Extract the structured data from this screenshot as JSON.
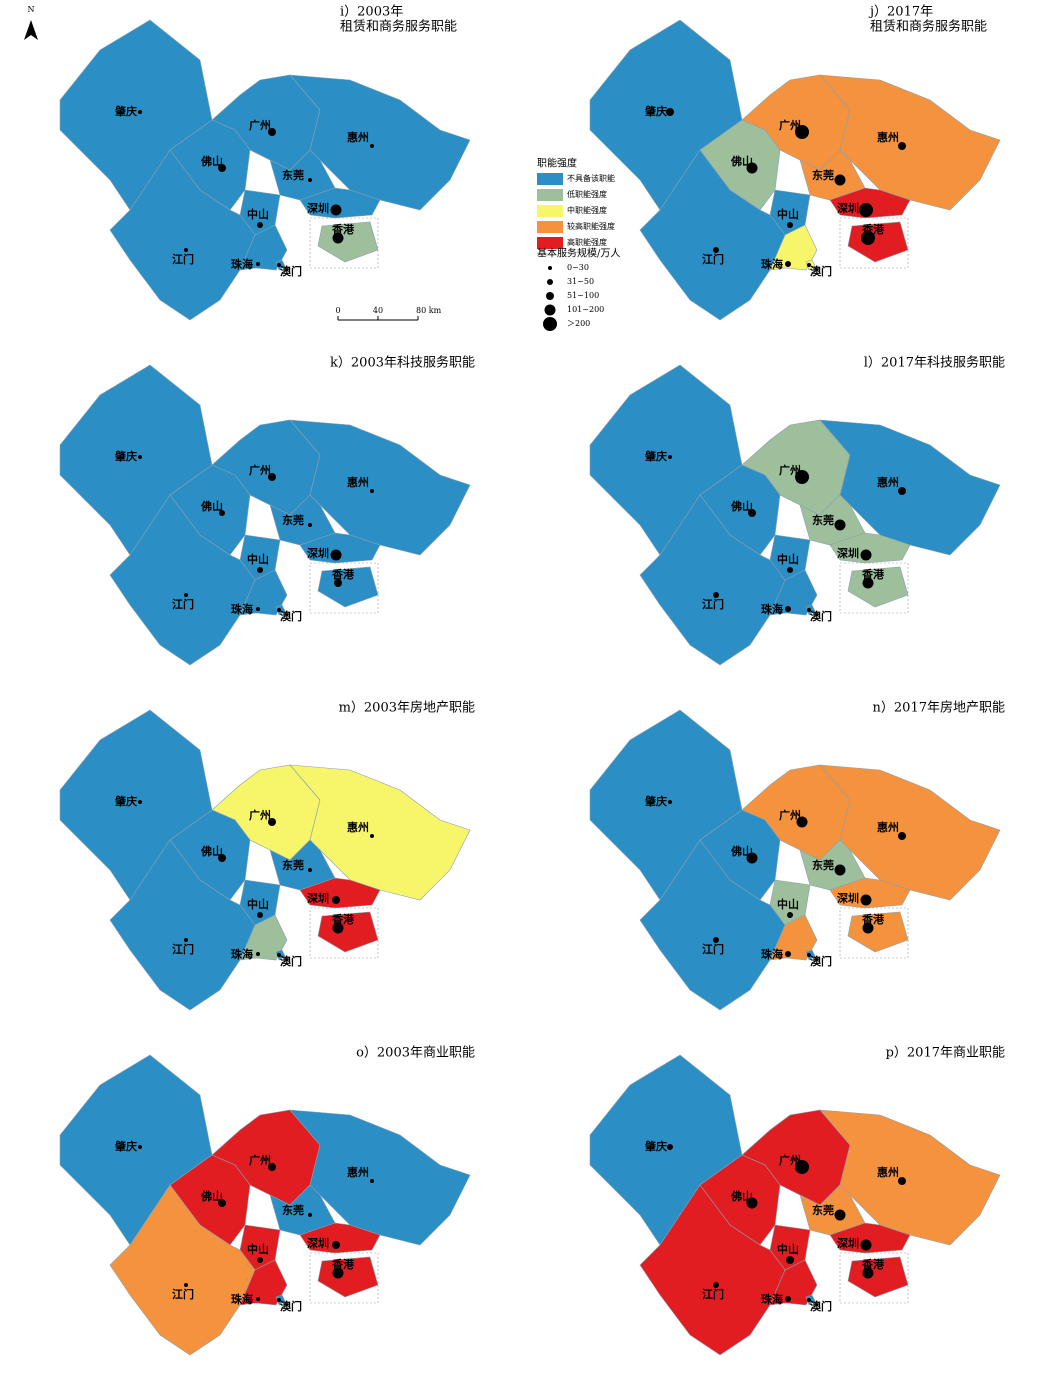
{
  "north": "N",
  "legend": {
    "title": "职能强度",
    "classes": [
      {
        "label": "不具备该职能",
        "color": "#2b8fc5"
      },
      {
        "label": "低职能强度",
        "color": "#9dbf9c"
      },
      {
        "label": "中职能强度",
        "color": "#f7f56a"
      },
      {
        "label": "较高职能强度",
        "color": "#f5923e"
      },
      {
        "label": "高职能强度",
        "color": "#e21d21"
      }
    ],
    "size_title": "基本服务规模/万人",
    "sizes": [
      "0~30",
      "31~50",
      "51~100",
      "101~200",
      "＞200"
    ]
  },
  "scale_labels": [
    "0",
    "40",
    "80 km"
  ],
  "cities": [
    "肇庆",
    "广州",
    "惠州",
    "佛山",
    "东莞",
    "深圳",
    "中山",
    "江门",
    "珠海",
    "澳门",
    "香港"
  ],
  "panels": [
    {
      "title": "i）2003年",
      "subtitle": "租赁和商务服务职能",
      "levels": [
        0,
        0,
        0,
        0,
        0,
        0,
        0,
        0,
        0,
        0,
        1
      ],
      "sizes": [
        0,
        2,
        0,
        2,
        0,
        3,
        1,
        0,
        0,
        0,
        3
      ]
    },
    {
      "title": "j）2017年",
      "subtitle": "租赁和商务服务职能",
      "levels": [
        0,
        3,
        3,
        1,
        3,
        4,
        0,
        0,
        2,
        2,
        4
      ],
      "sizes": [
        2,
        4,
        2,
        3,
        3,
        4,
        1,
        1,
        1,
        0,
        4
      ]
    },
    {
      "title": "k）2003年科技服务职能",
      "levels": [
        0,
        0,
        0,
        0,
        0,
        0,
        0,
        0,
        0,
        0,
        0
      ],
      "sizes": [
        0,
        2,
        0,
        1,
        0,
        3,
        1,
        0,
        0,
        0,
        2
      ]
    },
    {
      "title": "l）2017年科技服务职能",
      "levels": [
        0,
        1,
        0,
        0,
        1,
        1,
        0,
        0,
        0,
        0,
        1
      ],
      "sizes": [
        0,
        4,
        2,
        2,
        3,
        3,
        1,
        1,
        1,
        0,
        3
      ]
    },
    {
      "title": "m）2003年房地产职能",
      "levels": [
        0,
        2,
        2,
        0,
        0,
        4,
        0,
        0,
        1,
        0,
        4
      ],
      "sizes": [
        0,
        2,
        0,
        2,
        0,
        2,
        1,
        0,
        0,
        0,
        3
      ]
    },
    {
      "title": "n）2017年房地产职能",
      "levels": [
        0,
        3,
        3,
        0,
        1,
        3,
        1,
        0,
        3,
        0,
        3
      ],
      "sizes": [
        0,
        3,
        2,
        3,
        3,
        3,
        1,
        1,
        1,
        0,
        3
      ]
    },
    {
      "title": "o）2003年商业职能",
      "levels": [
        0,
        4,
        0,
        4,
        0,
        4,
        4,
        3,
        4,
        0,
        4
      ],
      "sizes": [
        0,
        2,
        0,
        2,
        0,
        2,
        1,
        0,
        0,
        0,
        3
      ]
    },
    {
      "title": "p）2017年商业职能",
      "levels": [
        0,
        4,
        3,
        4,
        3,
        4,
        4,
        4,
        4,
        0,
        4
      ],
      "sizes": [
        1,
        4,
        2,
        3,
        3,
        3,
        2,
        1,
        1,
        0,
        3
      ]
    }
  ]
}
